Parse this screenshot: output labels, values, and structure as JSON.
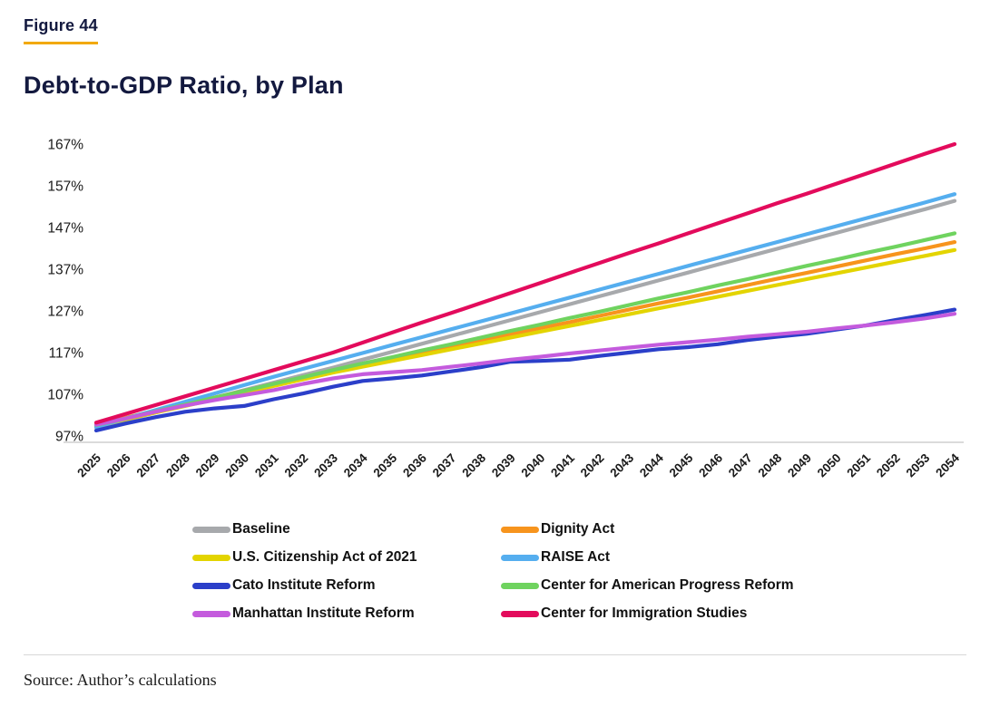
{
  "figure_label": "Figure 44",
  "title": "Debt-to-GDP Ratio, by Plan",
  "source": "Source: Author’s calculations",
  "accent_color": "#F2A900",
  "axis_text_color": "#1a1a1a",
  "axis_line_color": "#cfcfcf",
  "chart_data": {
    "type": "line",
    "title": "Debt-to-GDP Ratio, by Plan",
    "xlabel": "",
    "ylabel": "",
    "grid": false,
    "legend_position": "bottom",
    "ylim": [
      95,
      169
    ],
    "yticks": [
      97,
      107,
      117,
      127,
      137,
      147,
      157,
      167
    ],
    "ytick_labels": [
      "97%",
      "107%",
      "117%",
      "127%",
      "137%",
      "147%",
      "157%",
      "167%"
    ],
    "x": [
      "2025",
      "2026",
      "2027",
      "2028",
      "2029",
      "2030",
      "2031",
      "2032",
      "2033",
      "2034",
      "2035",
      "2036",
      "2037",
      "2038",
      "2039",
      "2040",
      "2041",
      "2042",
      "2043",
      "2044",
      "2045",
      "2046",
      "2047",
      "2048",
      "2049",
      "2050",
      "2051",
      "2052",
      "2053",
      "2054"
    ],
    "series": [
      {
        "name": "Baseline",
        "color": "#A7A9AC",
        "values": [
          99.0,
          100.8,
          102.6,
          104.4,
          106.2,
          108.0,
          109.8,
          111.6,
          113.4,
          115.3,
          117.2,
          119.1,
          121.0,
          122.9,
          124.8,
          126.7,
          128.6,
          130.5,
          132.4,
          134.3,
          136.2,
          138.1,
          140.0,
          141.9,
          143.8,
          145.7,
          147.6,
          149.5,
          151.4,
          153.4
        ]
      },
      {
        "name": "Dignity Act",
        "color": "#F7941D",
        "values": [
          99.8,
          101.4,
          103.0,
          104.6,
          106.2,
          107.8,
          109.3,
          110.9,
          112.5,
          114.0,
          115.5,
          117.0,
          118.4,
          119.9,
          121.4,
          122.9,
          124.3,
          125.8,
          127.3,
          128.8,
          130.2,
          131.7,
          133.2,
          134.7,
          136.1,
          137.6,
          139.1,
          140.6,
          142.0,
          143.5
        ]
      },
      {
        "name": "U.S. Citizenship Act of 2021",
        "color": "#E3D400",
        "values": [
          99.4,
          101.0,
          102.6,
          104.2,
          105.8,
          107.4,
          109.0,
          110.6,
          112.2,
          113.6,
          115.0,
          116.4,
          117.8,
          119.2,
          120.6,
          122.0,
          123.4,
          124.8,
          126.2,
          127.6,
          129.0,
          130.4,
          131.8,
          133.2,
          134.6,
          136.0,
          137.4,
          138.8,
          140.2,
          141.6
        ]
      },
      {
        "name": "RAISE Act",
        "color": "#55AEEF",
        "values": [
          99.2,
          101.2,
          103.2,
          105.2,
          107.2,
          109.2,
          111.2,
          113.1,
          115.0,
          116.9,
          118.8,
          120.7,
          122.6,
          124.5,
          126.4,
          128.3,
          130.2,
          132.1,
          134.0,
          135.9,
          137.8,
          139.7,
          141.6,
          143.5,
          145.4,
          147.3,
          149.2,
          151.1,
          153.0,
          155.0
        ]
      },
      {
        "name": "Cato Institute Reform",
        "color": "#2B3FC9",
        "values": [
          98.3,
          100.0,
          101.5,
          102.8,
          103.6,
          104.2,
          105.8,
          107.2,
          108.8,
          110.2,
          110.8,
          111.5,
          112.5,
          113.5,
          114.8,
          115.0,
          115.3,
          116.2,
          117.0,
          117.8,
          118.3,
          119.0,
          120.0,
          120.8,
          121.5,
          122.5,
          123.5,
          124.8,
          126.0,
          127.3
        ]
      },
      {
        "name": "Center for American Progress Reform",
        "color": "#6FD35F",
        "values": [
          99.6,
          101.2,
          102.9,
          104.5,
          106.2,
          107.8,
          109.5,
          111.1,
          112.8,
          114.4,
          115.9,
          117.5,
          119.0,
          120.6,
          122.2,
          123.7,
          125.3,
          126.8,
          128.4,
          130.0,
          131.5,
          133.1,
          134.6,
          136.2,
          137.8,
          139.3,
          140.9,
          142.4,
          144.0,
          145.6
        ]
      },
      {
        "name": "Manhattan Institute Reform",
        "color": "#C45BDD",
        "values": [
          99.7,
          101.2,
          102.8,
          104.3,
          105.6,
          106.8,
          108.0,
          109.5,
          110.8,
          111.8,
          112.3,
          112.8,
          113.6,
          114.4,
          115.3,
          116.0,
          116.8,
          117.5,
          118.2,
          118.9,
          119.5,
          120.1,
          120.8,
          121.4,
          122.0,
          122.8,
          123.5,
          124.3,
          125.2,
          126.3
        ]
      },
      {
        "name": "Center for Immigration Studies",
        "color": "#E30B5C",
        "values": [
          100.2,
          102.3,
          104.4,
          106.5,
          108.6,
          110.7,
          112.8,
          114.9,
          117.0,
          119.4,
          121.8,
          124.2,
          126.5,
          128.9,
          131.3,
          133.7,
          136.1,
          138.5,
          140.9,
          143.2,
          145.6,
          148.0,
          150.4,
          152.8,
          155.1,
          157.5,
          159.9,
          162.3,
          164.7,
          167.0
        ]
      }
    ]
  }
}
